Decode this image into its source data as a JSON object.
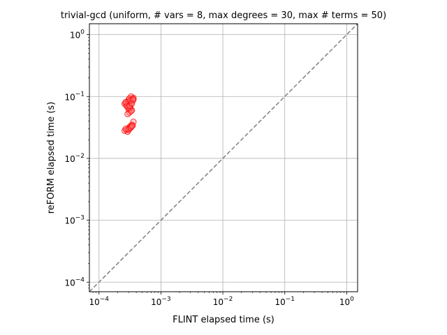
{
  "chart_data": {
    "type": "scatter",
    "title": "trivial-gcd (uniform, # vars = 8, max degrees = 30, max # terms = 50)",
    "xlabel": "FLINT elapsed time (s)",
    "ylabel": "reFORM elapsed time (s)",
    "xscale": "log",
    "yscale": "log",
    "xlim": [
      7e-05,
      1.5
    ],
    "ylim": [
      7e-05,
      1.5
    ],
    "grid": true,
    "x_ticks": [
      {
        "value": 0.0001,
        "base": "10",
        "exp": "−4"
      },
      {
        "value": 0.001,
        "base": "10",
        "exp": "−3"
      },
      {
        "value": 0.01,
        "base": "10",
        "exp": "−2"
      },
      {
        "value": 0.1,
        "base": "10",
        "exp": "−1"
      },
      {
        "value": 1,
        "base": "10",
        "exp": "0"
      }
    ],
    "y_ticks": [
      {
        "value": 0.0001,
        "base": "10",
        "exp": "−4"
      },
      {
        "value": 0.001,
        "base": "10",
        "exp": "−3"
      },
      {
        "value": 0.01,
        "base": "10",
        "exp": "−2"
      },
      {
        "value": 0.1,
        "base": "10",
        "exp": "−1"
      },
      {
        "value": 1,
        "base": "10",
        "exp": "0"
      }
    ],
    "reference_line": {
      "type": "y=x",
      "style": "dashed",
      "color": "#808080"
    },
    "marker": {
      "shape": "circle",
      "edge_color": "#ff0000",
      "fill_color": "#ff8080",
      "fill_alpha": 0.35
    },
    "series": [
      {
        "points": [
          [
            0.00027,
            0.078
          ],
          [
            0.00029,
            0.075
          ],
          [
            0.00031,
            0.083
          ],
          [
            0.00034,
            0.09
          ],
          [
            0.00036,
            0.095
          ],
          [
            0.00033,
            0.1
          ],
          [
            0.0003,
            0.088
          ],
          [
            0.00028,
            0.072
          ],
          [
            0.00032,
            0.068
          ],
          [
            0.00035,
            0.086
          ],
          [
            0.00029,
            0.082
          ],
          [
            0.00031,
            0.093
          ],
          [
            0.00026,
            0.076
          ],
          [
            0.00033,
            0.079
          ],
          [
            0.0003,
            0.062
          ],
          [
            0.00032,
            0.064
          ],
          [
            0.00034,
            0.06
          ],
          [
            0.00031,
            0.055
          ],
          [
            0.00029,
            0.052
          ],
          [
            0.00033,
            0.058
          ],
          [
            0.0003,
            0.066
          ],
          [
            0.00028,
            0.07
          ],
          [
            0.00035,
            0.092
          ],
          [
            0.00032,
            0.085
          ],
          [
            0.00027,
            0.081
          ],
          [
            0.00031,
            0.071
          ],
          [
            0.00034,
            0.077
          ],
          [
            0.00036,
            0.089
          ],
          [
            0.00026,
            0.028
          ],
          [
            0.00028,
            0.029
          ],
          [
            0.0003,
            0.031
          ],
          [
            0.00032,
            0.033
          ],
          [
            0.00034,
            0.035
          ],
          [
            0.00036,
            0.039
          ],
          [
            0.00029,
            0.027
          ],
          [
            0.00031,
            0.03
          ],
          [
            0.00033,
            0.032
          ],
          [
            0.00035,
            0.034
          ],
          [
            0.0003,
            0.029
          ],
          [
            0.00032,
            0.031
          ],
          [
            0.00027,
            0.03
          ],
          [
            0.00034,
            0.033
          ]
        ]
      }
    ]
  }
}
